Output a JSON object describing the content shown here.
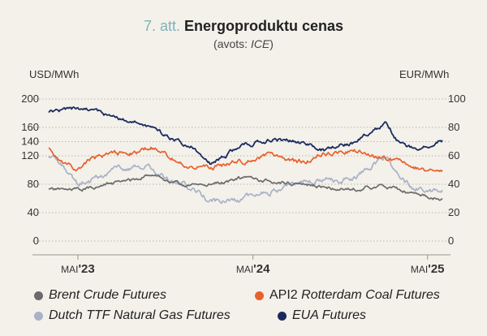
{
  "header": {
    "figure_number": "7. att.",
    "title": "Energoproduktu cenas",
    "source_prefix": "(avots: ",
    "source_name": "ICE",
    "source_suffix": ")"
  },
  "chart_data": {
    "type": "line",
    "title": "Energoproduktu cenas",
    "y_left": {
      "label": "USD/MWh",
      "range": [
        0,
        200
      ],
      "ticks": [
        0,
        40,
        80,
        120,
        140,
        160,
        200
      ]
    },
    "y_right": {
      "label": "EUR/MWh",
      "range": [
        0,
        100
      ],
      "ticks": [
        0,
        20,
        40,
        60,
        80,
        100
      ]
    },
    "x_range": [
      "2023-03-01",
      "2025-06-01"
    ],
    "x_ticks": [
      {
        "date": "2023-05-01",
        "label": "MAI",
        "year": "'23"
      },
      {
        "date": "2024-05-01",
        "label": "MAI",
        "year": "'24"
      },
      {
        "date": "2025-05-01",
        "label": "MAI",
        "year": "'25"
      }
    ],
    "grid": true,
    "legend_position": "bottom",
    "series": [
      {
        "name": "Brent Crude Futures",
        "axis": "left",
        "color": "#6b6b6b",
        "x": [
          "2023-03-01",
          "2023-05-01",
          "2023-07-01",
          "2023-09-01",
          "2023-10-01",
          "2023-12-01",
          "2024-02-01",
          "2024-04-01",
          "2024-06-01",
          "2024-08-01",
          "2024-10-01",
          "2024-12-01",
          "2025-02-01",
          "2025-04-01",
          "2025-06-01"
        ],
        "values": [
          72,
          72,
          79,
          86,
          95,
          78,
          80,
          88,
          84,
          82,
          76,
          74,
          77,
          67,
          60
        ]
      },
      {
        "name": "API2 Rotterdam Coal Futures",
        "axis": "left",
        "color": "#e8602c",
        "x": [
          "2023-03-01",
          "2023-04-01",
          "2023-05-01",
          "2023-06-01",
          "2023-08-01",
          "2023-10-01",
          "2023-12-01",
          "2024-02-01",
          "2024-04-01",
          "2024-06-01",
          "2024-08-01",
          "2024-10-01",
          "2024-12-01",
          "2025-02-01",
          "2025-04-01",
          "2025-06-01"
        ],
        "values": [
          130,
          108,
          100,
          118,
          122,
          132,
          110,
          102,
          112,
          118,
          110,
          122,
          126,
          118,
          102,
          100
        ]
      },
      {
        "name": "Dutch TTF Natural Gas Futures",
        "axis": "left",
        "color": "#a9b2c6",
        "x": [
          "2023-03-01",
          "2023-04-01",
          "2023-05-01",
          "2023-06-01",
          "2023-08-01",
          "2023-10-01",
          "2023-12-01",
          "2024-02-01",
          "2024-04-01",
          "2024-06-01",
          "2024-08-01",
          "2024-10-01",
          "2024-12-01",
          "2025-02-01",
          "2025-03-01",
          "2025-04-01",
          "2025-06-01"
        ],
        "values": [
          118,
          102,
          80,
          86,
          104,
          102,
          82,
          56,
          58,
          70,
          82,
          84,
          90,
          120,
          92,
          74,
          72
        ]
      },
      {
        "name": "EUA Futures",
        "axis": "right",
        "color": "#1b2a5e",
        "x": [
          "2023-03-01",
          "2023-05-01",
          "2023-07-01",
          "2023-09-01",
          "2023-11-01",
          "2024-01-01",
          "2024-02-01",
          "2024-04-01",
          "2024-06-01",
          "2024-08-01",
          "2024-10-01",
          "2024-12-01",
          "2025-02-01",
          "2025-03-01",
          "2025-04-01",
          "2025-06-01"
        ],
        "values": [
          90,
          93,
          88,
          84,
          74,
          65,
          55,
          66,
          72,
          70,
          64,
          70,
          82,
          70,
          64,
          71
        ]
      }
    ]
  }
}
